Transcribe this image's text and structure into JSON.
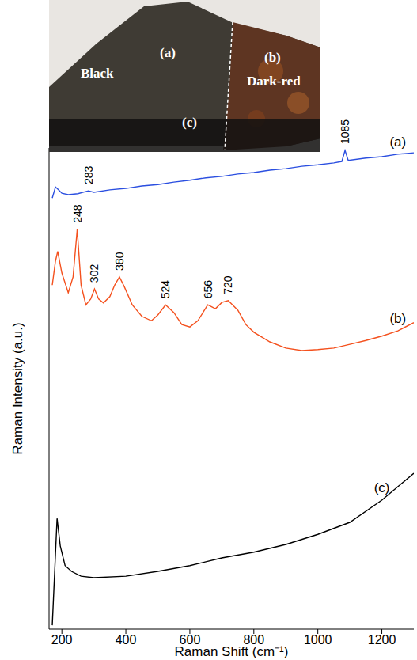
{
  "chart_data": {
    "type": "line",
    "x_label": "Raman Shift (cm⁻¹)",
    "y_label": "Raman Intensity (a.u.)",
    "xlim": [
      160,
      1300
    ],
    "xticks": [
      200,
      400,
      600,
      800,
      1000,
      1200
    ],
    "ylim": [
      0,
      100
    ],
    "grid": false,
    "tick_labels": "x",
    "series": [
      {
        "name": "(a)",
        "color": "#2b4fe0",
        "x": [
          170,
          180,
          190,
          200,
          220,
          250,
          283,
          300,
          350,
          400,
          450,
          500,
          550,
          600,
          650,
          700,
          750,
          800,
          850,
          900,
          950,
          1000,
          1050,
          1075,
          1085,
          1095,
          1150,
          1200,
          1250,
          1300
        ],
        "values": [
          89.6,
          91.9,
          91.3,
          90.6,
          90.3,
          90.5,
          91.1,
          90.8,
          91.3,
          91.6,
          92.1,
          92.4,
          92.9,
          93.3,
          93.8,
          94.1,
          94.6,
          94.9,
          95.4,
          95.7,
          96.2,
          96.5,
          96.9,
          97.2,
          99.5,
          97.4,
          97.9,
          98.2,
          98.7,
          99.0
        ]
      },
      {
        "name": "(b)",
        "color": "#f4511e",
        "x": [
          170,
          180,
          187,
          200,
          220,
          235,
          248,
          260,
          275,
          290,
          302,
          315,
          330,
          350,
          365,
          380,
          395,
          420,
          450,
          480,
          500,
          524,
          550,
          575,
          600,
          625,
          656,
          680,
          700,
          720,
          750,
          775,
          800,
          850,
          900,
          950,
          1000,
          1050,
          1100,
          1150,
          1200,
          1250,
          1300
        ],
        "values": [
          71.5,
          76.5,
          78.5,
          74.0,
          69.9,
          73.2,
          83.1,
          71.5,
          67.4,
          68.6,
          70.7,
          68.6,
          67.8,
          69.1,
          71.5,
          73.2,
          71.2,
          67.4,
          65.0,
          64.1,
          65.3,
          67.4,
          65.8,
          63.3,
          62.8,
          64.1,
          67.4,
          66.6,
          67.9,
          68.3,
          66.3,
          63.3,
          61.7,
          59.7,
          58.4,
          57.9,
          58.1,
          58.4,
          59.2,
          60.0,
          60.9,
          62.0,
          63.7
        ]
      },
      {
        "name": "(c)",
        "color": "#000000",
        "x": [
          170,
          180,
          185,
          195,
          210,
          230,
          260,
          300,
          400,
          500,
          600,
          700,
          800,
          900,
          1000,
          1100,
          1200,
          1300
        ],
        "values": [
          0.8,
          15.6,
          23.0,
          17.3,
          13.2,
          12.0,
          11.0,
          10.7,
          11.0,
          12.0,
          13.2,
          14.8,
          16.0,
          17.6,
          19.7,
          22.2,
          26.8,
          32.4
        ]
      }
    ],
    "annotations": [
      {
        "text": "1085",
        "x": 1085,
        "series": "(a)"
      },
      {
        "text": "283",
        "x": 283,
        "series": "(a)"
      },
      {
        "text": "248",
        "x": 248,
        "series": "(b)"
      },
      {
        "text": "302",
        "x": 302,
        "series": "(b)"
      },
      {
        "text": "380",
        "x": 380,
        "series": "(b)"
      },
      {
        "text": "524",
        "x": 524,
        "series": "(b)"
      },
      {
        "text": "656",
        "x": 656,
        "series": "(b)"
      },
      {
        "text": "720",
        "x": 720,
        "series": "(b)"
      }
    ]
  },
  "inset_photo": {
    "labels": [
      "(a)",
      "Black",
      "(b)",
      "Dark-red",
      "(c)"
    ]
  }
}
